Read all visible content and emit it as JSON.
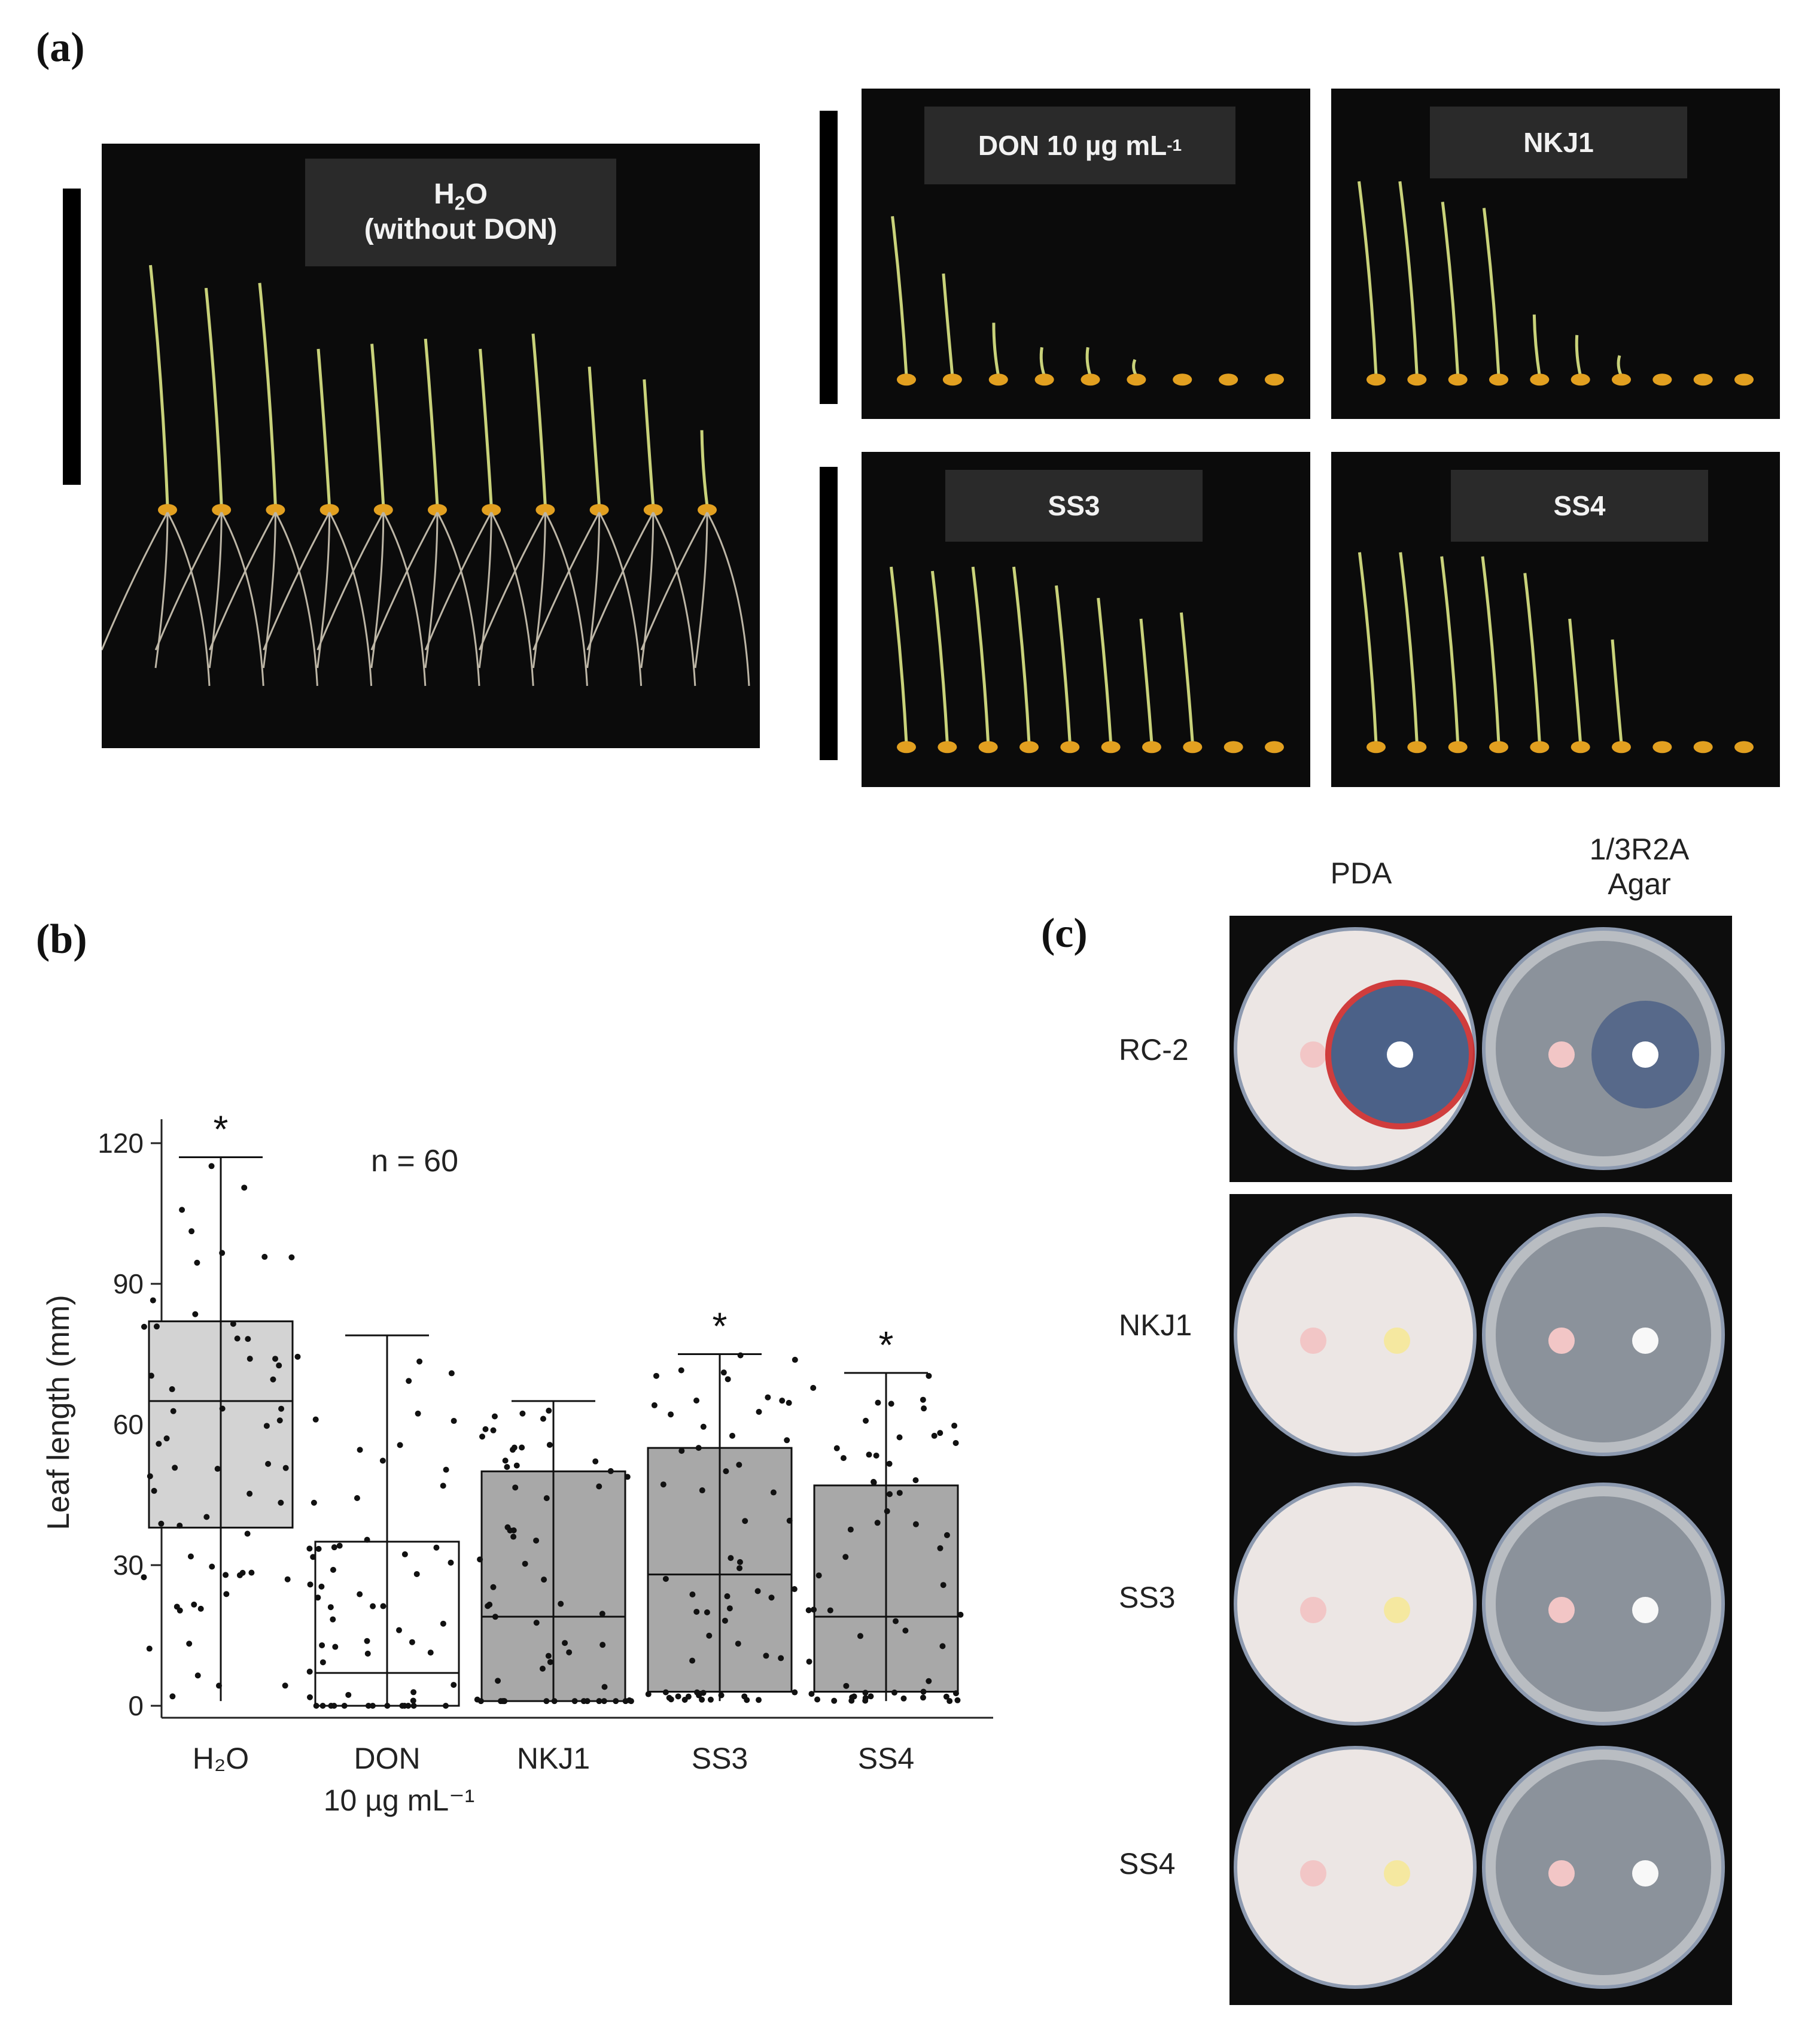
{
  "panel_a": {
    "label": "(a)",
    "photos": [
      {
        "title_main": "H",
        "title_sub": "2",
        "title_rest": "O",
        "title_line2": "(without DON)",
        "seedling_heights": [
          0.95,
          0.86,
          0.88,
          0.62,
          0.64,
          0.66,
          0.62,
          0.68,
          0.55,
          0.5,
          0.3
        ],
        "roots": true
      },
      {
        "title": "DON 10 µg mL",
        "title_sup": "-1",
        "seedling_heights": [
          0.78,
          0.5,
          0.26,
          0.14,
          0.14,
          0.08,
          0.05,
          0.03,
          0.03
        ],
        "roots": false
      },
      {
        "title": "NKJ1",
        "seedling_heights": [
          0.95,
          0.95,
          0.85,
          0.82,
          0.3,
          0.2,
          0.1,
          0.03,
          0.03,
          0.03
        ],
        "roots": false
      },
      {
        "title": "SS3",
        "seedling_heights": [
          0.85,
          0.83,
          0.85,
          0.85,
          0.76,
          0.7,
          0.6,
          0.63,
          0.03,
          0.03
        ],
        "roots": false
      },
      {
        "title": "SS4",
        "seedling_heights": [
          0.92,
          0.92,
          0.9,
          0.9,
          0.82,
          0.6,
          0.5,
          0.03,
          0.03,
          0.03
        ],
        "roots": false
      }
    ]
  },
  "panel_b": {
    "label": "(b)",
    "annotation": "n = 60",
    "chart_data": {
      "type": "box",
      "ylabel": "Leaf length (mm)",
      "xlabel": "",
      "ylim": [
        0,
        120
      ],
      "yticks": [
        0,
        30,
        60,
        90,
        120
      ],
      "categories": [
        {
          "name": "H₂O",
          "name2": ""
        },
        {
          "name": "DON",
          "name2": "10 µg mL⁻¹"
        },
        {
          "name": "NKJ1",
          "name2": ""
        },
        {
          "name": "SS3",
          "name2": ""
        },
        {
          "name": "SS4",
          "name2": ""
        }
      ],
      "boxes": [
        {
          "q1": 38,
          "median": 65,
          "q3": 82,
          "min": 1,
          "max": 117,
          "fill": "#d3d3d3",
          "significant": true
        },
        {
          "q1": 0,
          "median": 7,
          "q3": 35,
          "min": 0,
          "max": 79,
          "fill": "#ffffff",
          "significant": false
        },
        {
          "q1": 1,
          "median": 19,
          "q3": 50,
          "min": 1,
          "max": 65,
          "fill": "#a8a8a8",
          "significant": false
        },
        {
          "q1": 3,
          "median": 28,
          "q3": 55,
          "min": 1,
          "max": 75,
          "fill": "#a8a8a8",
          "significant": true
        },
        {
          "q1": 3,
          "median": 19,
          "q3": 47,
          "min": 1,
          "max": 71,
          "fill": "#a8a8a8",
          "significant": true
        }
      ],
      "significance_mark": "*"
    }
  },
  "panel_c": {
    "label": "(c)",
    "columns": [
      "PDA",
      "1/3R2A",
      "Agar"
    ],
    "rows": [
      "RC-2",
      "NKJ1",
      "SS3",
      "SS4"
    ]
  }
}
